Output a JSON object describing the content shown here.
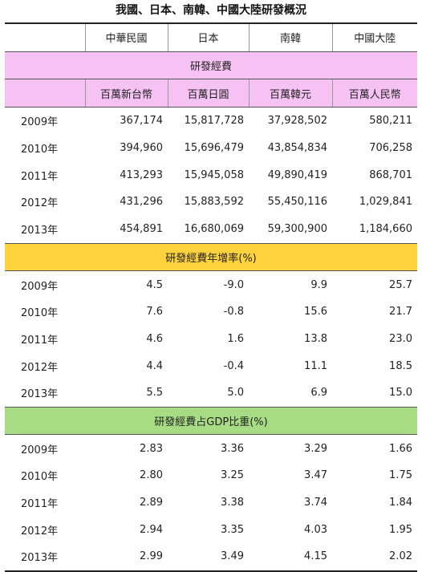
{
  "title": "我國、日本、南韓、中國大陸研發概況",
  "columns": [
    "中華民國",
    "日本",
    "南韓",
    "中國大陸"
  ],
  "colors": {
    "expense_header": "#f5c2f3",
    "growth_header": "#fdd23c",
    "gdp_header": "#a8dc84"
  },
  "sections": {
    "expense": {
      "title": "研發經費",
      "units": [
        "百萬新台幣",
        "百萬日圓",
        "百萬韓元",
        "百萬人民幣"
      ],
      "rows": [
        {
          "year": "2009年",
          "values": [
            "367,174",
            "15,817,728",
            "37,928,502",
            "580,211"
          ]
        },
        {
          "year": "2010年",
          "values": [
            "394,960",
            "15,696,479",
            "43,854,834",
            "706,258"
          ]
        },
        {
          "year": "2011年",
          "values": [
            "413,293",
            "15,945,058",
            "49,890,419",
            "868,701"
          ]
        },
        {
          "year": "2012年",
          "values": [
            "431,296",
            "15,883,592",
            "55,450,116",
            "1,029,841"
          ]
        },
        {
          "year": "2013年",
          "values": [
            "454,891",
            "16,680,069",
            "59,300,900",
            "1,184,660"
          ]
        }
      ]
    },
    "growth": {
      "title": "研發經費年增率(%)",
      "rows": [
        {
          "year": "2009年",
          "values": [
            "4.5",
            "-9.0",
            "9.9",
            "25.7"
          ]
        },
        {
          "year": "2010年",
          "values": [
            "7.6",
            "-0.8",
            "15.6",
            "21.7"
          ]
        },
        {
          "year": "2011年",
          "values": [
            "4.6",
            "1.6",
            "13.8",
            "23.0"
          ]
        },
        {
          "year": "2012年",
          "values": [
            "4.4",
            "-0.4",
            "11.1",
            "18.5"
          ]
        },
        {
          "year": "2013年",
          "values": [
            "5.5",
            "5.0",
            "6.9",
            "15.0"
          ]
        }
      ]
    },
    "gdp": {
      "title": "研發經費占GDP比重(%)",
      "rows": [
        {
          "year": "2009年",
          "values": [
            "2.83",
            "3.36",
            "3.29",
            "1.66"
          ]
        },
        {
          "year": "2010年",
          "values": [
            "2.80",
            "3.25",
            "3.47",
            "1.75"
          ]
        },
        {
          "year": "2011年",
          "values": [
            "2.89",
            "3.38",
            "3.74",
            "1.84"
          ]
        },
        {
          "year": "2012年",
          "values": [
            "2.94",
            "3.35",
            "4.03",
            "1.95"
          ]
        },
        {
          "year": "2013年",
          "values": [
            "2.99",
            "3.49",
            "4.15",
            "2.02"
          ]
        }
      ]
    }
  }
}
